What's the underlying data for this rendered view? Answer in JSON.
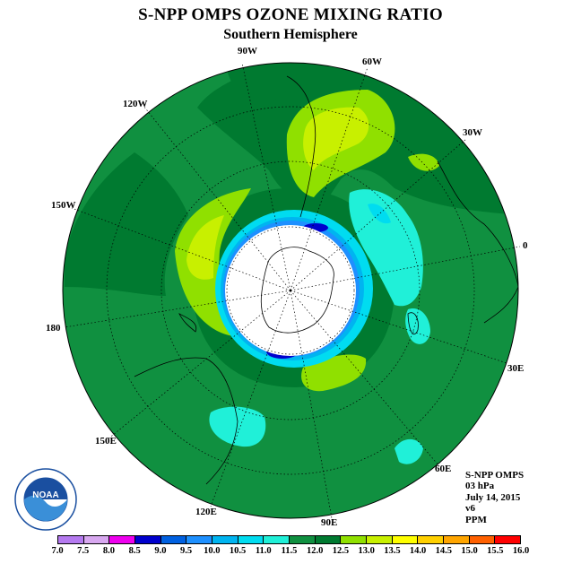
{
  "title": "S-NPP OMPS OZONE MIXING RATIO",
  "subtitle": "Southern Hemisphere",
  "longitude_labels": {
    "lon_90w": "90W",
    "lon_60w": "60W",
    "lon_30w": "30W",
    "lon_0": "0",
    "lon_30e": "30E",
    "lon_60e": "60E",
    "lon_90e": "90E",
    "lon_120e": "120E",
    "lon_150e": "150E",
    "lon_180": "180",
    "lon_150w": "150W",
    "lon_120w": "120W"
  },
  "info": {
    "instrument": "S-NPP OMPS",
    "level": "03 hPa",
    "date": "July 14, 2015",
    "version": "v6",
    "units": "PPM"
  },
  "logo": {
    "text": "NOAA"
  },
  "colorbar": {
    "ticks": [
      "7.0",
      "7.5",
      "8.0",
      "8.5",
      "9.0",
      "9.5",
      "10.0",
      "10.5",
      "11.0",
      "11.5",
      "12.0",
      "12.5",
      "13.0",
      "13.5",
      "14.0",
      "14.5",
      "15.0",
      "15.5",
      "16.0"
    ],
    "colors": [
      "#b57af0",
      "#d8a8f0",
      "#ee00ee",
      "#0000cd",
      "#0060e0",
      "#1e90ff",
      "#00b4f0",
      "#00dcf0",
      "#20f0d8",
      "#109040",
      "#007a30",
      "#90e000",
      "#c8f000",
      "#ffff00",
      "#ffd000",
      "#ffa500",
      "#ff6000",
      "#ff0000",
      "#8b5a3c"
    ]
  }
}
